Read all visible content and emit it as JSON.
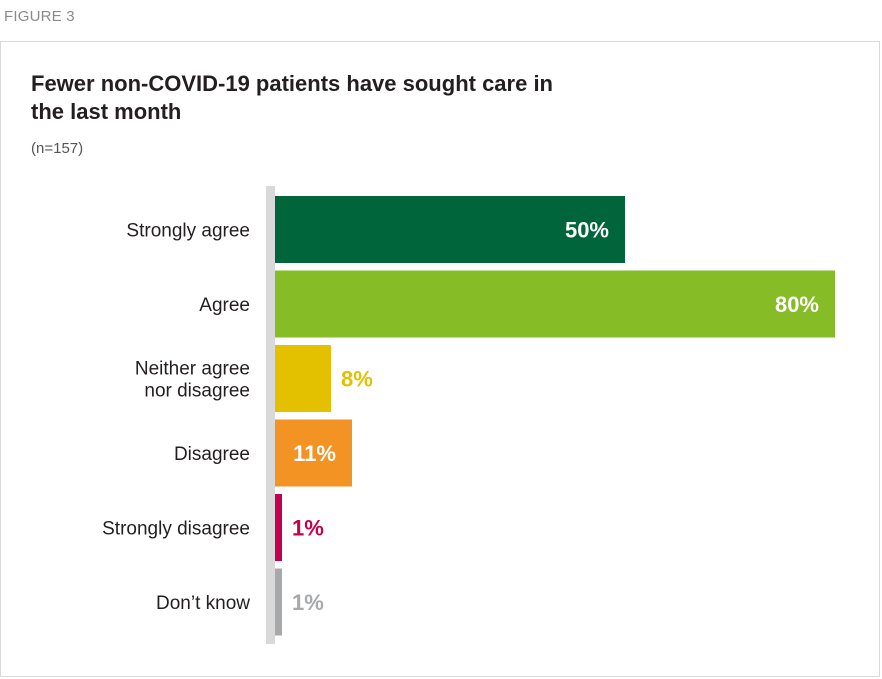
{
  "figure_label": "FIGURE 3",
  "chart_data": {
    "type": "bar",
    "orientation": "horizontal",
    "title": "Fewer non-COVID-19 patients have sought care in the last month",
    "subtitle": "(n=157)",
    "categories": [
      "Strongly agree",
      "Agree",
      "Neither agree\nnor disagree",
      "Disagree",
      "Strongly disagree",
      "Don’t know"
    ],
    "values": [
      50,
      80,
      8,
      11,
      1,
      1
    ],
    "value_labels": [
      "50%",
      "80%",
      "8%",
      "11%",
      "1%",
      "1%"
    ],
    "colors": [
      "#00653a",
      "#86bc25",
      "#e3c000",
      "#f39323",
      "#c4004f",
      "#a7a8aa"
    ],
    "xlim": [
      0,
      80
    ],
    "grid": false,
    "legend": "none"
  }
}
